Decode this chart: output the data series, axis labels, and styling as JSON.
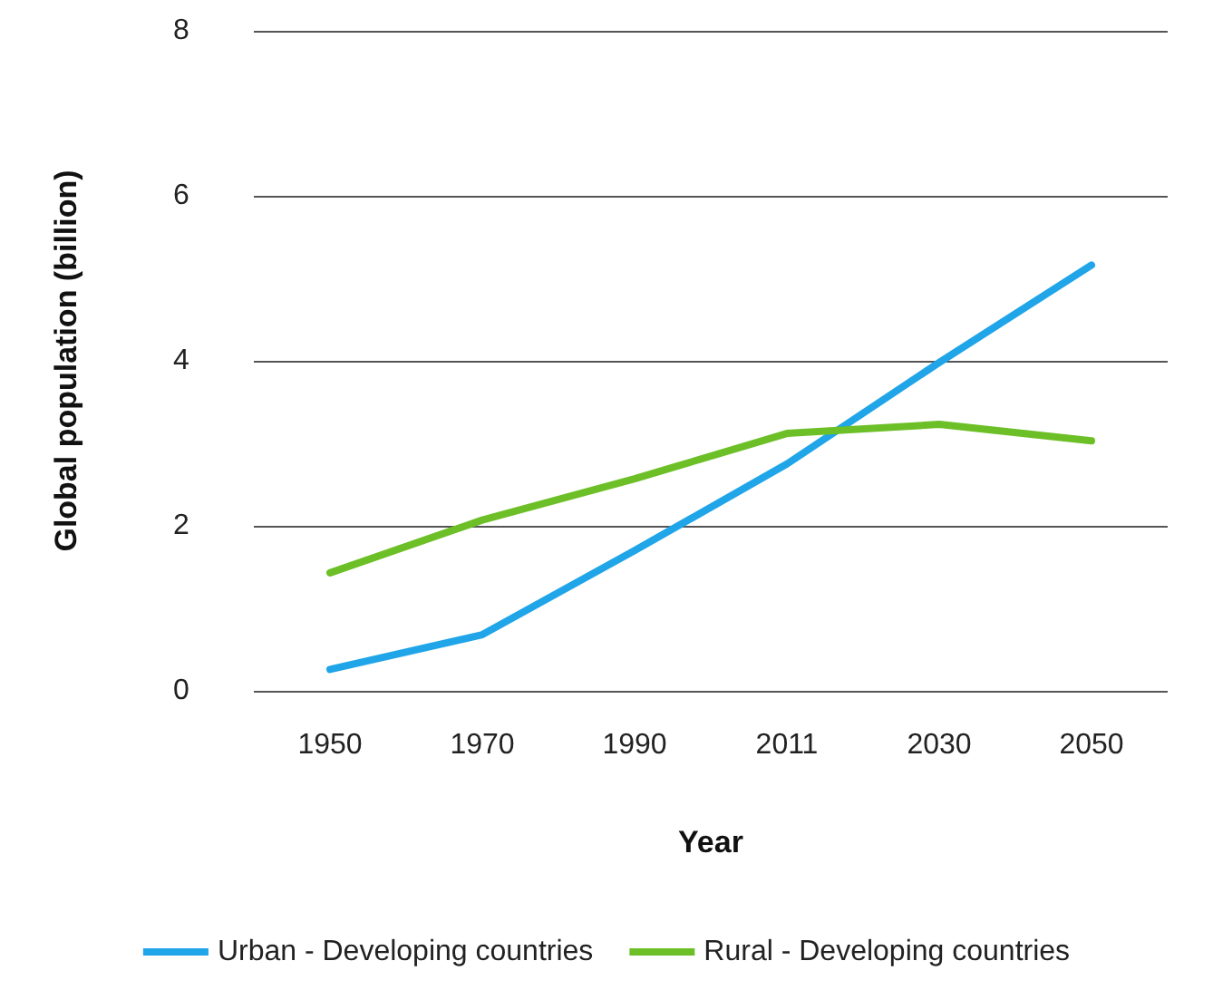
{
  "chart_data": {
    "type": "line",
    "xlabel": "Year",
    "ylabel": "Global population (billion)",
    "categories": [
      "1950",
      "1970",
      "1990",
      "2011",
      "2030",
      "2050"
    ],
    "series": [
      {
        "name": "Urban - Developing countries",
        "color": "#1fa5e8",
        "values": [
          0.26,
          0.68,
          1.7,
          2.75,
          3.98,
          5.16
        ]
      },
      {
        "name": "Rural - Developing countries",
        "color": "#6cbf26",
        "values": [
          1.43,
          2.07,
          2.57,
          3.12,
          3.23,
          3.03
        ]
      }
    ],
    "ylim": [
      0,
      8
    ],
    "yticks": [
      0,
      2,
      4,
      6,
      8
    ],
    "grid": "y",
    "legend": "bottom",
    "marker": "none",
    "line_style": "solid"
  }
}
